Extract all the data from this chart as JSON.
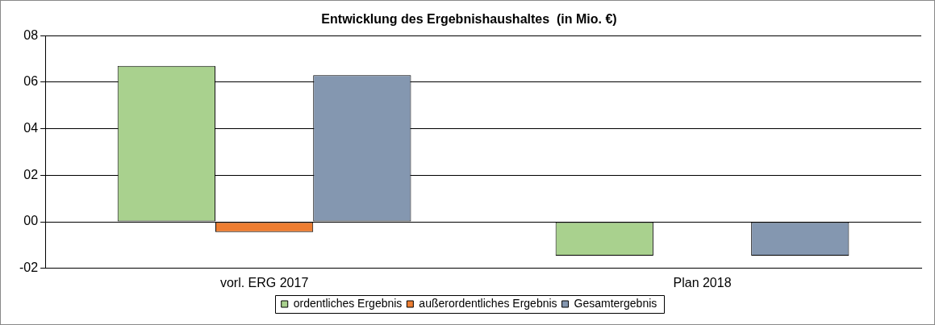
{
  "chart_data": {
    "type": "bar",
    "title": "Entwicklung des Ergebnishaushaltes  (in Mio. €)",
    "categories": [
      "vorl. ERG 2017",
      "Plan 2018"
    ],
    "series": [
      {
        "name": "ordentliches Ergebnis",
        "color": "#a9d18e",
        "values": [
          6.7,
          -1.45
        ]
      },
      {
        "name": "außerordentliches Ergebnis",
        "color": "#ed7d31",
        "values": [
          -0.44,
          0
        ]
      },
      {
        "name": "Gesamtergebnis",
        "color": "#8497b0",
        "values": [
          6.3,
          -1.45
        ]
      }
    ],
    "ylim": [
      -2,
      8
    ],
    "yticks": [
      {
        "value": -2,
        "label": "-02"
      },
      {
        "value": 0,
        "label": "00"
      },
      {
        "value": 2,
        "label": "02"
      },
      {
        "value": 4,
        "label": "04"
      },
      {
        "value": 6,
        "label": "06"
      },
      {
        "value": 8,
        "label": "08"
      }
    ],
    "grid": "y",
    "legend": "bottom"
  }
}
